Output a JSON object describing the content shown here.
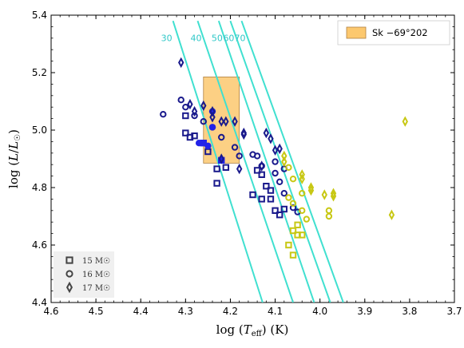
{
  "chart_data": {
    "type": "scatter",
    "xlabel": "log (T_eff) (K)",
    "ylabel": "log (L/L☉)",
    "xlim": [
      4.6,
      3.7
    ],
    "ylim": [
      4.4,
      5.4
    ],
    "x_ticks": [
      "4.6",
      "4.5",
      "4.4",
      "4.3",
      "4.2",
      "4.1",
      "4.0",
      "3.9",
      "3.8",
      "3.7"
    ],
    "y_ticks": [
      "4.4",
      "4.6",
      "4.8",
      "5.0",
      "5.2",
      "5.4"
    ],
    "region": {
      "name": "Sk −69°202",
      "x_range": [
        4.26,
        4.18
      ],
      "y_range": [
        4.885,
        5.185
      ],
      "color": "#fcc86e"
    },
    "isoradius_lines": [
      {
        "label": "30",
        "points": [
          [
            4.328,
            5.38
          ],
          [
            4.128,
            4.4
          ]
        ]
      },
      {
        "label": "40",
        "points": [
          [
            4.273,
            5.38
          ],
          [
            4.06,
            4.4
          ]
        ]
      },
      {
        "label": "50",
        "points": [
          [
            4.226,
            5.38
          ],
          [
            4.013,
            4.4
          ]
        ]
      },
      {
        "label": "60",
        "points": [
          [
            4.2,
            5.38
          ],
          [
            3.977,
            4.4
          ]
        ]
      },
      {
        "label": "70",
        "points": [
          [
            4.175,
            5.38
          ],
          [
            3.948,
            4.4
          ]
        ]
      }
    ],
    "colors": {
      "navy": "#1a1a8c",
      "blue": "#2222e8",
      "olive": "#c8c814",
      "cyan": "#40e0d0"
    },
    "legend": [
      {
        "marker": "square",
        "label": "15 M☉"
      },
      {
        "marker": "circle",
        "label": "16 M☉"
      },
      {
        "marker": "diamond",
        "label": "17 M☉"
      }
    ],
    "series": [
      {
        "marker": "square",
        "color": "navy",
        "points": [
          [
            4.3,
            5.05
          ],
          [
            4.3,
            4.99
          ],
          [
            4.29,
            4.975
          ],
          [
            4.28,
            4.98
          ],
          [
            4.25,
            4.925
          ],
          [
            4.23,
            4.865
          ],
          [
            4.23,
            4.815
          ],
          [
            4.21,
            4.87
          ],
          [
            4.14,
            4.86
          ],
          [
            4.13,
            4.845
          ],
          [
            4.15,
            4.775
          ],
          [
            4.12,
            4.805
          ],
          [
            4.11,
            4.79
          ],
          [
            4.13,
            4.76
          ],
          [
            4.11,
            4.76
          ],
          [
            4.1,
            4.72
          ],
          [
            4.09,
            4.705
          ],
          [
            4.08,
            4.725
          ]
        ]
      },
      {
        "marker": "circle",
        "color": "navy",
        "points": [
          [
            4.35,
            5.055
          ],
          [
            4.31,
            5.105
          ],
          [
            4.3,
            5.08
          ],
          [
            4.28,
            5.05
          ],
          [
            4.26,
            5.03
          ],
          [
            4.24,
            5.01
          ],
          [
            4.22,
            4.975
          ],
          [
            4.19,
            4.94
          ],
          [
            4.18,
            4.91
          ],
          [
            4.15,
            4.915
          ],
          [
            4.14,
            4.91
          ],
          [
            4.13,
            4.875
          ],
          [
            4.1,
            4.89
          ],
          [
            4.1,
            4.85
          ],
          [
            4.08,
            4.865
          ],
          [
            4.09,
            4.82
          ],
          [
            4.08,
            4.78
          ],
          [
            4.06,
            4.73
          ],
          [
            4.05,
            4.715
          ]
        ]
      },
      {
        "marker": "circle",
        "color": "blue",
        "points": [
          [
            4.27,
            4.955
          ],
          [
            4.25,
            4.945
          ],
          [
            4.22,
            4.895
          ],
          [
            4.24,
            5.065
          ],
          [
            4.24,
            5.01
          ]
        ]
      },
      {
        "marker": "square",
        "color": "blue",
        "points": [
          [
            4.26,
            4.955
          ],
          [
            4.22,
            4.895
          ]
        ]
      },
      {
        "marker": "diamond",
        "color": "navy",
        "points": [
          [
            4.31,
            5.235
          ],
          [
            4.29,
            5.09
          ],
          [
            4.28,
            5.065
          ],
          [
            4.24,
            5.045
          ],
          [
            4.22,
            5.03
          ],
          [
            4.21,
            5.03
          ],
          [
            4.19,
            5.03
          ],
          [
            4.17,
            4.99
          ],
          [
            4.17,
            4.985
          ],
          [
            4.12,
            4.99
          ],
          [
            4.11,
            4.97
          ],
          [
            4.1,
            4.93
          ],
          [
            4.09,
            4.935
          ],
          [
            4.13,
            4.875
          ],
          [
            4.18,
            4.865
          ],
          [
            4.22,
            4.9
          ]
        ]
      },
      {
        "marker": "diamond",
        "color": "navy",
        "points": [
          [
            4.24,
            5.065
          ],
          [
            4.26,
            5.085
          ]
        ]
      },
      {
        "marker": "square",
        "color": "olive",
        "points": [
          [
            4.06,
            4.65
          ],
          [
            4.05,
            4.67
          ],
          [
            4.04,
            4.635
          ],
          [
            4.05,
            4.635
          ],
          [
            4.07,
            4.6
          ],
          [
            4.06,
            4.565
          ]
        ]
      },
      {
        "marker": "circle",
        "color": "olive",
        "points": [
          [
            4.06,
            4.83
          ],
          [
            4.07,
            4.765
          ],
          [
            4.06,
            4.745
          ],
          [
            4.04,
            4.78
          ],
          [
            4.04,
            4.72
          ],
          [
            4.03,
            4.69
          ],
          [
            3.98,
            4.72
          ],
          [
            3.98,
            4.7
          ],
          [
            4.07,
            4.87
          ]
        ]
      },
      {
        "marker": "diamond",
        "color": "olive",
        "points": [
          [
            4.08,
            4.89
          ],
          [
            4.08,
            4.91
          ],
          [
            4.04,
            4.83
          ],
          [
            4.04,
            4.845
          ],
          [
            4.02,
            4.79
          ],
          [
            4.02,
            4.8
          ],
          [
            3.99,
            4.775
          ],
          [
            3.97,
            4.78
          ],
          [
            3.97,
            4.77
          ],
          [
            3.84,
            4.705
          ],
          [
            3.81,
            5.03
          ]
        ]
      }
    ]
  }
}
